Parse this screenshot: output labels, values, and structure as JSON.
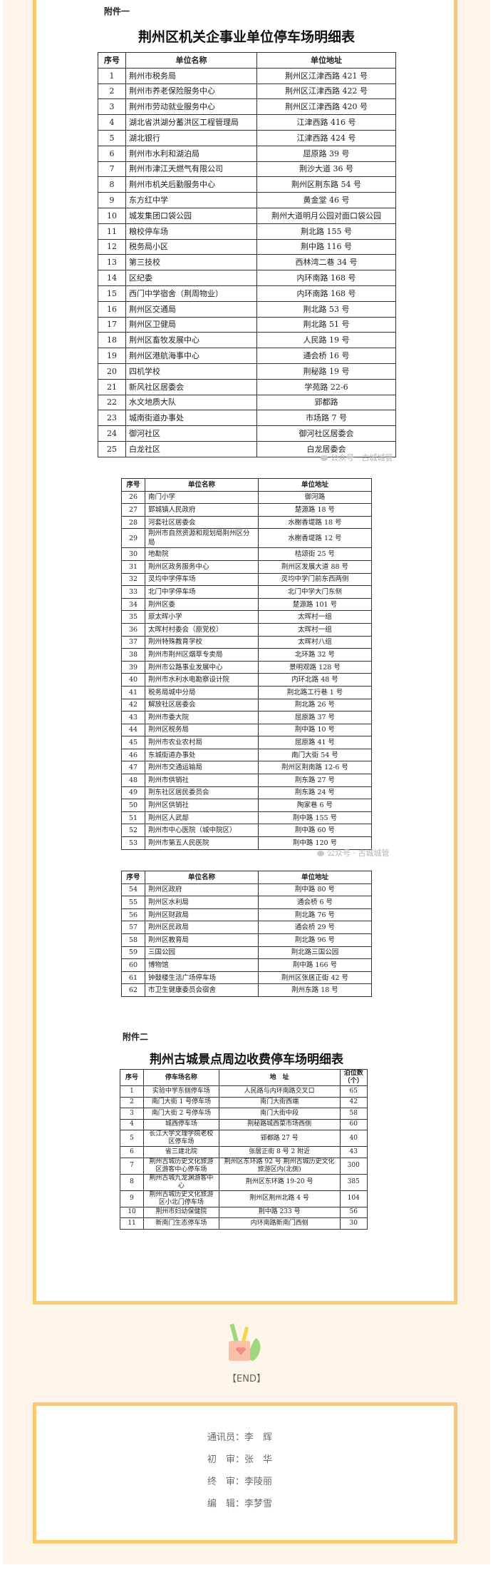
{
  "attachment1": {
    "label": "附件一",
    "title": "荆州区机关企事业单位停车场明细表"
  },
  "headers": {
    "no": "序号",
    "name": "单位名称",
    "addr": "单位地址"
  },
  "table1": [
    [
      "1",
      "荆州市税务局",
      "荆州区江津西路 421 号"
    ],
    [
      "2",
      "荆州市养老保险服务中心",
      "荆州区江津西路 422 号"
    ],
    [
      "3",
      "荆州市劳动就业服务中心",
      "荆州区江津西路 420 号"
    ],
    [
      "4",
      "湖北省洪湖分蓄洪区工程管理局",
      "江津西路 416 号"
    ],
    [
      "5",
      "湖北银行",
      "江津西路 424 号"
    ],
    [
      "6",
      "荆州市水利和湖泊局",
      "屈原路 39 号"
    ],
    [
      "7",
      "荆州市津江天燃气有限公司",
      "荆沙大道 36 号"
    ],
    [
      "8",
      "荆州市机关后勤服务中心",
      "荆州区荆东路 54 号"
    ],
    [
      "9",
      "东方红中学",
      "黄金堂 46 号"
    ],
    [
      "10",
      "城发集团口袋公园",
      "荆州大道明月公园对面口袋公园"
    ],
    [
      "11",
      "粮校停车场",
      "荆北路 155 号"
    ],
    [
      "12",
      "税务局小区",
      "荆中路 116 号"
    ],
    [
      "13",
      "第三技校",
      "西林湾二巷 34 号"
    ],
    [
      "14",
      "区纪委",
      "内环南路 168 号"
    ],
    [
      "15",
      "西门中学宿舍（荆周物业）",
      "内环南路 168 号"
    ],
    [
      "16",
      "荆州区交通局",
      "荆北路 53 号"
    ],
    [
      "17",
      "荆州区卫健局",
      "荆北路 51 号"
    ],
    [
      "18",
      "荆州区畜牧发展中心",
      "人民路 19 号"
    ],
    [
      "19",
      "荆州区港航海事中心",
      "通会桥 16 号"
    ],
    [
      "20",
      "四机学校",
      "荆秘路 19 号"
    ],
    [
      "21",
      "新风社区居委会",
      "学苑路 22-6"
    ],
    [
      "22",
      "水文地质大队",
      "郢都路"
    ],
    [
      "23",
      "城南街道办事处",
      "市场路 7 号"
    ],
    [
      "24",
      "御河社区",
      "御河社区居委会"
    ],
    [
      "25",
      "白龙社区",
      "白龙居委会"
    ]
  ],
  "table2": [
    [
      "26",
      "南门小学",
      "御河路"
    ],
    [
      "27",
      "郢城镇人民政府",
      "楚源路 18 号"
    ],
    [
      "28",
      "河套社区居委会",
      "水榭香堤路 18 号"
    ],
    [
      "29",
      "荆州市自然资源和规划局荆州区分局",
      "水榭香堤路 12 号"
    ],
    [
      "30",
      "地勘院",
      "桔颂街 25 号"
    ],
    [
      "31",
      "荆州区政务服务中心",
      "荆州区发展大道 88 号"
    ],
    [
      "32",
      "灵均中学停车场",
      "灵均中学门前东西两侧"
    ],
    [
      "33",
      "北门中学停车场",
      "北门中学大门东侧"
    ],
    [
      "34",
      "荆州区委",
      "楚源路 101 号"
    ],
    [
      "35",
      "原太晖小学",
      "太晖村一组"
    ],
    [
      "36",
      "太晖村村委会（原党校）",
      "太晖村一组"
    ],
    [
      "37",
      "荆州特殊教育学校",
      "太晖村八组"
    ],
    [
      "38",
      "荆州市荆州区烟草专卖局",
      "北环路 32 号"
    ],
    [
      "39",
      "荆州市公路事业发展中心",
      "景明观路 128 号"
    ],
    [
      "40",
      "荆州市水利水电勘察设计院",
      "内环北路 48 号"
    ],
    [
      "41",
      "税务局城中分局",
      "荆北路工行巷 1 号"
    ],
    [
      "42",
      "解放社区居委会",
      "荆北路 26 号"
    ],
    [
      "43",
      "荆州市委大院",
      "屈原路 37 号"
    ],
    [
      "44",
      "荆州区税务局",
      "荆中路 10 号"
    ],
    [
      "45",
      "荆州市农业农村局",
      "屈原路 41 号"
    ],
    [
      "46",
      "东城街道办事处",
      "南门大街 54 号"
    ],
    [
      "47",
      "荆州市交通运输局",
      "荆州区荆南路 12-6 号"
    ],
    [
      "48",
      "荆州市供销社",
      "荆东路 27 号"
    ],
    [
      "49",
      "荆东社区居民委员会",
      "荆东路 24 号"
    ],
    [
      "50",
      "荆州区供销社",
      "陶家巷 6 号"
    ],
    [
      "51",
      "荆州区人武部",
      "荆中路 155 号"
    ],
    [
      "52",
      "荆州市中心医院（城中院区）",
      "荆中路 60 号"
    ],
    [
      "53",
      "荆州市第五人民医院",
      "荆中路 120 号"
    ]
  ],
  "table3": [
    [
      "54",
      "荆州区政府",
      "荆中路 80 号"
    ],
    [
      "55",
      "荆州区水利局",
      "通会桥 6 号"
    ],
    [
      "56",
      "荆州区财政局",
      "荆北路 76 号"
    ],
    [
      "57",
      "荆州区民政局",
      "通会桥 29 号"
    ],
    [
      "58",
      "荆州区教育局",
      "荆北路 96 号"
    ],
    [
      "59",
      "三国公园",
      "荆北路三国公园"
    ],
    [
      "60",
      "博物馆",
      "荆中路 166 号"
    ],
    [
      "61",
      "钟鼓楼生活广场停车场",
      "荆州区张居正街 42 号"
    ],
    [
      "62",
      "市卫生健康委员会宿舍",
      "荆州东路 18 号"
    ]
  ],
  "attachment2": {
    "label": "附件二",
    "title": "荆州古城景点周边收费停车场明细表"
  },
  "headers2": {
    "no": "序号",
    "name": "停车场名称",
    "addr": "地　址",
    "spots": "泊位数（个）"
  },
  "table4": [
    [
      "1",
      "实验中学东侧停车场",
      "人民路与内环南路交叉口",
      "65"
    ],
    [
      "2",
      "南门大街 1 号停车场",
      "南门大街西端",
      "42"
    ],
    [
      "3",
      "南门大街 2 号停车场",
      "南门大街中段",
      "58"
    ],
    [
      "4",
      "城西停车场",
      "荆秘路城西菜市场西侧",
      "60"
    ],
    [
      "5",
      "长江大学文理学院老校区停车场",
      "郢都路 27 号",
      "40"
    ],
    [
      "6",
      "省三建北院",
      "张居正街 8 号 2 附近",
      "43"
    ],
    [
      "7",
      "荆州古城历史文化旅游区游客中心停车场",
      "荆州区东环路 92 号 荆州古城历史文化旅游区内(北侧)",
      "300"
    ],
    [
      "8",
      "荆州古城九龙渊游客中心",
      "荆州区东环路 19-20 号",
      "385"
    ],
    [
      "9",
      "荆州古城历史文化旅游区小北门停车场",
      "荆州区荆州北路 4 号",
      "104"
    ],
    [
      "10",
      "荆州市妇幼保健院",
      "荆中路 233 号",
      "56"
    ],
    [
      "11",
      "新南门生态停车场",
      "内环南路新南门西侧",
      "30"
    ]
  ],
  "watermark": "公众号 · 古城城管",
  "end_label": "【END】",
  "credits": [
    {
      "role": "通讯员：",
      "name": "李　辉"
    },
    {
      "role": "初　审：",
      "name": "张　华"
    },
    {
      "role": "终　审：",
      "name": "李陵丽"
    },
    {
      "role": "编　辑：",
      "name": "李梦雪"
    }
  ],
  "colors": {
    "border": "#fbc96f",
    "background": "#fdf5ea"
  }
}
